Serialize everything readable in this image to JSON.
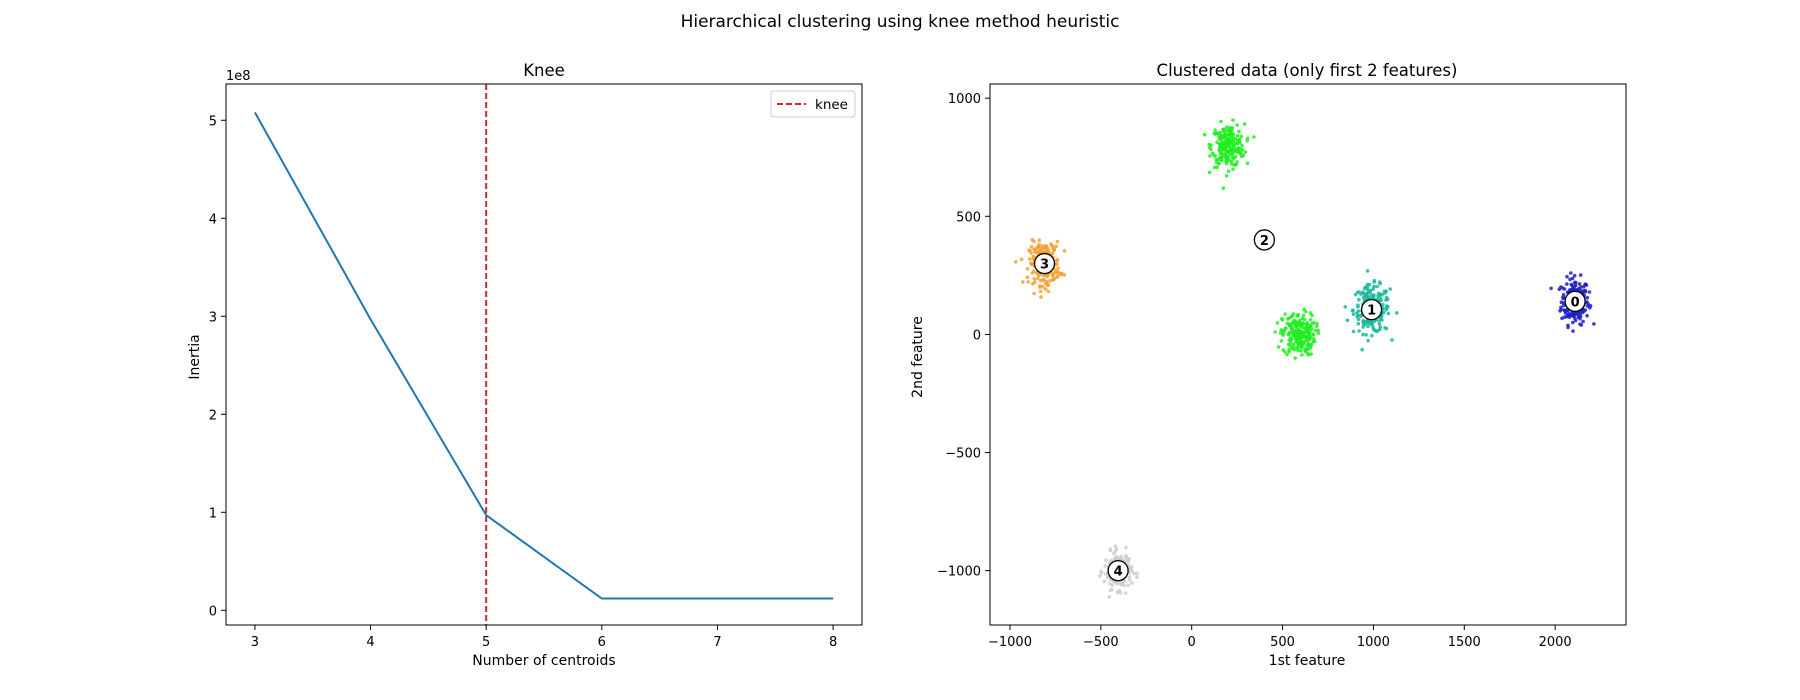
{
  "figure": {
    "suptitle": "Hierarchical clustering using knee method heuristic"
  },
  "chart_data": [
    {
      "type": "line",
      "title": "Knee",
      "xlabel": "Number of centroids",
      "ylabel": "Inertia",
      "y_offset_label": "1e8",
      "xlim": [
        2.75,
        8.25
      ],
      "ylim": [
        -0.15,
        5.37
      ],
      "xticks": [
        3,
        4,
        5,
        6,
        7,
        8
      ],
      "yticks": [
        0,
        1,
        2,
        3,
        4,
        5
      ],
      "series": [
        {
          "color": "#1f77b4",
          "x": [
            3,
            4,
            5,
            6,
            7,
            8
          ],
          "y": [
            5.08,
            2.97,
            0.97,
            0.12,
            0.12,
            0.12
          ]
        }
      ],
      "vline": {
        "x": 5,
        "label": "knee",
        "color": "#d62728",
        "style": "dashed"
      },
      "legend": {
        "position": "top-right",
        "entries": [
          "knee"
        ]
      },
      "grid": false
    },
    {
      "type": "scatter",
      "title": "Clustered data (only first 2 features)",
      "xlabel": "1st feature",
      "ylabel": "2nd feature",
      "xlim": [
        -1110,
        2390
      ],
      "ylim": [
        -1230,
        1060
      ],
      "xticks": [
        -1000,
        -500,
        0,
        500,
        1000,
        1500,
        2000
      ],
      "yticks": [
        -1000,
        -500,
        0,
        500,
        1000
      ],
      "grid": false,
      "clusters": [
        {
          "label": "0",
          "color": "#1f1fc8",
          "center": [
            2110,
            140
          ],
          "spread": [
            38,
            48
          ],
          "n": 220,
          "marker": [
            2110,
            140
          ]
        },
        {
          "label": "1",
          "color": "#1ab89a",
          "center": [
            990,
            105
          ],
          "spread": [
            50,
            50
          ],
          "n": 220,
          "marker": [
            990,
            105
          ]
        },
        {
          "label": "2",
          "color": "#22ee22",
          "center": [
            200,
            800
          ],
          "spread": [
            45,
            45
          ],
          "n": 220,
          "marker": [
            400,
            400
          ]
        },
        {
          "label": "2",
          "color": "#22ee22",
          "center": [
            590,
            0
          ],
          "spread": [
            45,
            45
          ],
          "n": 220,
          "marker": null
        },
        {
          "label": "3",
          "color": "#f5a030",
          "center": [
            -810,
            300
          ],
          "spread": [
            42,
            45
          ],
          "n": 220,
          "marker": [
            -810,
            300
          ]
        },
        {
          "label": "4",
          "color": "#cccccc",
          "center": [
            -405,
            -1000
          ],
          "spread": [
            38,
            38
          ],
          "n": 180,
          "marker": [
            -405,
            -1000
          ]
        }
      ]
    }
  ]
}
